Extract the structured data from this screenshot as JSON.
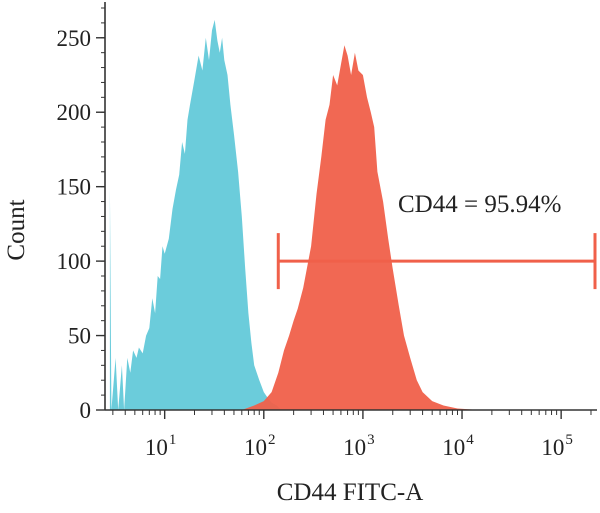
{
  "chart_data": {
    "type": "area",
    "title": "",
    "xlabel": "CD44 FITC-A",
    "ylabel": "Count",
    "x_scale": "log",
    "xlim": [
      2.5,
      230000
    ],
    "ylim": [
      0,
      270
    ],
    "y_ticks": [
      0,
      50,
      100,
      150,
      200,
      250
    ],
    "x_ticks": [
      {
        "value": 10,
        "base": "10",
        "exp": "1"
      },
      {
        "value": 100,
        "base": "10",
        "exp": "2"
      },
      {
        "value": 1000,
        "base": "10",
        "exp": "3"
      },
      {
        "value": 10000,
        "base": "10",
        "exp": "4"
      },
      {
        "value": 100000,
        "base": "10",
        "exp": "5"
      }
    ],
    "series": [
      {
        "color": "#5ec8d8",
        "points": [
          [
            2.8,
            150
          ],
          [
            2.9,
            0
          ],
          [
            3.2,
            35
          ],
          [
            3.4,
            0
          ],
          [
            3.7,
            30
          ],
          [
            3.9,
            0
          ],
          [
            4.2,
            35
          ],
          [
            4.5,
            25
          ],
          [
            4.8,
            40
          ],
          [
            5.2,
            35
          ],
          [
            5.5,
            42
          ],
          [
            6.0,
            38
          ],
          [
            6.5,
            50
          ],
          [
            7.0,
            55
          ],
          [
            7.5,
            75
          ],
          [
            8.0,
            65
          ],
          [
            8.5,
            90
          ],
          [
            9.0,
            88
          ],
          [
            9.5,
            110
          ],
          [
            10,
            105
          ],
          [
            11,
            115
          ],
          [
            12,
            135
          ],
          [
            13,
            148
          ],
          [
            14,
            158
          ],
          [
            15,
            180
          ],
          [
            16,
            172
          ],
          [
            17,
            195
          ],
          [
            18,
            205
          ],
          [
            20,
            222
          ],
          [
            22,
            238
          ],
          [
            24,
            228
          ],
          [
            26,
            250
          ],
          [
            28,
            235
          ],
          [
            30,
            255
          ],
          [
            32,
            262
          ],
          [
            34,
            248
          ],
          [
            36,
            240
          ],
          [
            38,
            250
          ],
          [
            40,
            235
          ],
          [
            43,
            225
          ],
          [
            46,
            205
          ],
          [
            50,
            185
          ],
          [
            55,
            160
          ],
          [
            60,
            130
          ],
          [
            65,
            95
          ],
          [
            70,
            65
          ],
          [
            75,
            45
          ],
          [
            80,
            30
          ],
          [
            90,
            20
          ],
          [
            100,
            12
          ],
          [
            110,
            8
          ],
          [
            120,
            5
          ],
          [
            135,
            3
          ],
          [
            150,
            0
          ]
        ]
      },
      {
        "color": "#f0604a",
        "points": [
          [
            60,
            0
          ],
          [
            80,
            3
          ],
          [
            100,
            6
          ],
          [
            120,
            12
          ],
          [
            140,
            25
          ],
          [
            160,
            40
          ],
          [
            180,
            50
          ],
          [
            200,
            60
          ],
          [
            220,
            68
          ],
          [
            250,
            82
          ],
          [
            300,
            110
          ],
          [
            340,
            145
          ],
          [
            380,
            170
          ],
          [
            420,
            195
          ],
          [
            460,
            205
          ],
          [
            500,
            225
          ],
          [
            550,
            218
          ],
          [
            600,
            232
          ],
          [
            650,
            245
          ],
          [
            700,
            238
          ],
          [
            760,
            225
          ],
          [
            830,
            240
          ],
          [
            900,
            228
          ],
          [
            1000,
            225
          ],
          [
            1100,
            210
          ],
          [
            1200,
            200
          ],
          [
            1300,
            190
          ],
          [
            1400,
            160
          ],
          [
            1600,
            140
          ],
          [
            1800,
            115
          ],
          [
            2000,
            95
          ],
          [
            2300,
            70
          ],
          [
            2600,
            50
          ],
          [
            3000,
            35
          ],
          [
            3500,
            20
          ],
          [
            4000,
            12
          ],
          [
            5000,
            6
          ],
          [
            6500,
            3
          ],
          [
            9000,
            1
          ],
          [
            15000,
            0
          ]
        ]
      }
    ],
    "gate": {
      "label": "CD44 = 95.94%",
      "x_start": 140,
      "x_end": 230000,
      "y": 100,
      "color": "#f0604a"
    }
  }
}
